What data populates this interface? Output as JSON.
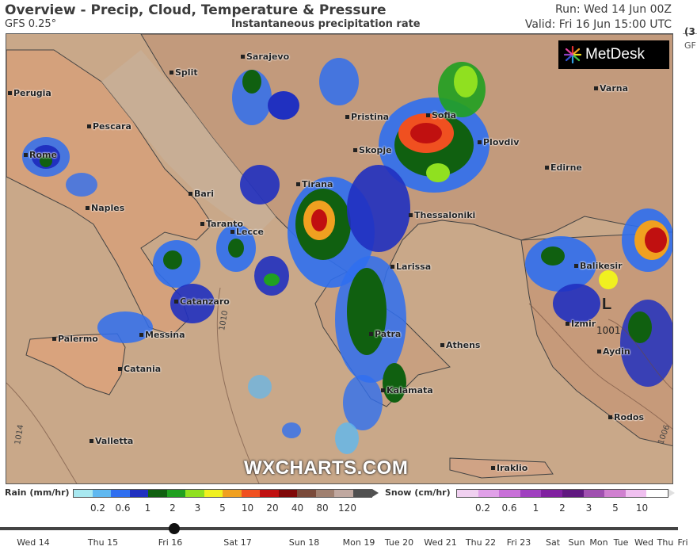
{
  "header": {
    "title": "Overview - Precip, Cloud, Temperature & Pressure",
    "model": "GFS 0.25°",
    "subtitle": "Instantaneous precipitation rate",
    "run": "Run: Wed 14 Jun 00Z",
    "valid": "Valid: Fri 16 Jun 15:00 UTC",
    "cut_right_1": "(3",
    "cut_right_2": "GF"
  },
  "logo": {
    "text": "MetDesk",
    "icon": "metdesk-star-icon"
  },
  "watermark": "WXCHARTS.COM",
  "pressure": {
    "low_symbol": "L",
    "low_value": "1001",
    "isobar_labels": [
      "1010",
      "1014",
      "1006"
    ]
  },
  "cities": [
    {
      "name": "Sarajevo"
    },
    {
      "name": "Split"
    },
    {
      "name": "Perugia"
    },
    {
      "name": "Pescara"
    },
    {
      "name": "Rome"
    },
    {
      "name": "Pristina"
    },
    {
      "name": "Sofia"
    },
    {
      "name": "Plovdiv"
    },
    {
      "name": "Varna"
    },
    {
      "name": "Skopje"
    },
    {
      "name": "Edirne"
    },
    {
      "name": "Tirana"
    },
    {
      "name": "Bari"
    },
    {
      "name": "Naples"
    },
    {
      "name": "Thessaloniki"
    },
    {
      "name": "Taranto"
    },
    {
      "name": "Lecce"
    },
    {
      "name": "Larissa"
    },
    {
      "name": "Balikesir"
    },
    {
      "name": "Catanzaro"
    },
    {
      "name": "Izmir"
    },
    {
      "name": "Palermo"
    },
    {
      "name": "Messina"
    },
    {
      "name": "Patra"
    },
    {
      "name": "Athens"
    },
    {
      "name": "Aydin"
    },
    {
      "name": "Catania"
    },
    {
      "name": "Kalamata"
    },
    {
      "name": "Rodos"
    },
    {
      "name": "Valletta"
    },
    {
      "name": "Iraklio"
    }
  ],
  "legend": {
    "rain_label": "Rain (mm/hr)",
    "rain_ticks": [
      "0.2",
      "0.6",
      "1",
      "2",
      "3",
      "5",
      "10",
      "20",
      "40",
      "80",
      "120"
    ],
    "rain_colors": [
      "#a8e8f0",
      "#5fb8f0",
      "#2f6ff0",
      "#2030c0",
      "#106010",
      "#20a020",
      "#90e020",
      "#f0f020",
      "#f0a020",
      "#f05020",
      "#c01010",
      "#800808",
      "#7a4a3a",
      "#a08070",
      "#c0a8a0",
      "#505050"
    ],
    "snow_label": "Snow (cm/hr)",
    "snow_ticks": [
      "0.2",
      "0.6",
      "1",
      "2",
      "3",
      "5",
      "10"
    ],
    "snow_colors": [
      "#f0d0f0",
      "#e0a0e8",
      "#c870d8",
      "#a040c0",
      "#8020a0",
      "#601880",
      "#a050b0",
      "#d080d0",
      "#f0c0f0",
      "#ffffff"
    ]
  },
  "timeline": {
    "days": [
      "Wed 14",
      "Thu 15",
      "Fri 16",
      "Sat 17",
      "Sun 18",
      "Mon 19",
      "Tue 20",
      "Wed 21",
      "Thu 22",
      "Fri 23",
      "Sat",
      "Sun",
      "Mon",
      "Tue",
      "Wed",
      "Thu",
      "Fri"
    ],
    "current": "Fri 16"
  }
}
